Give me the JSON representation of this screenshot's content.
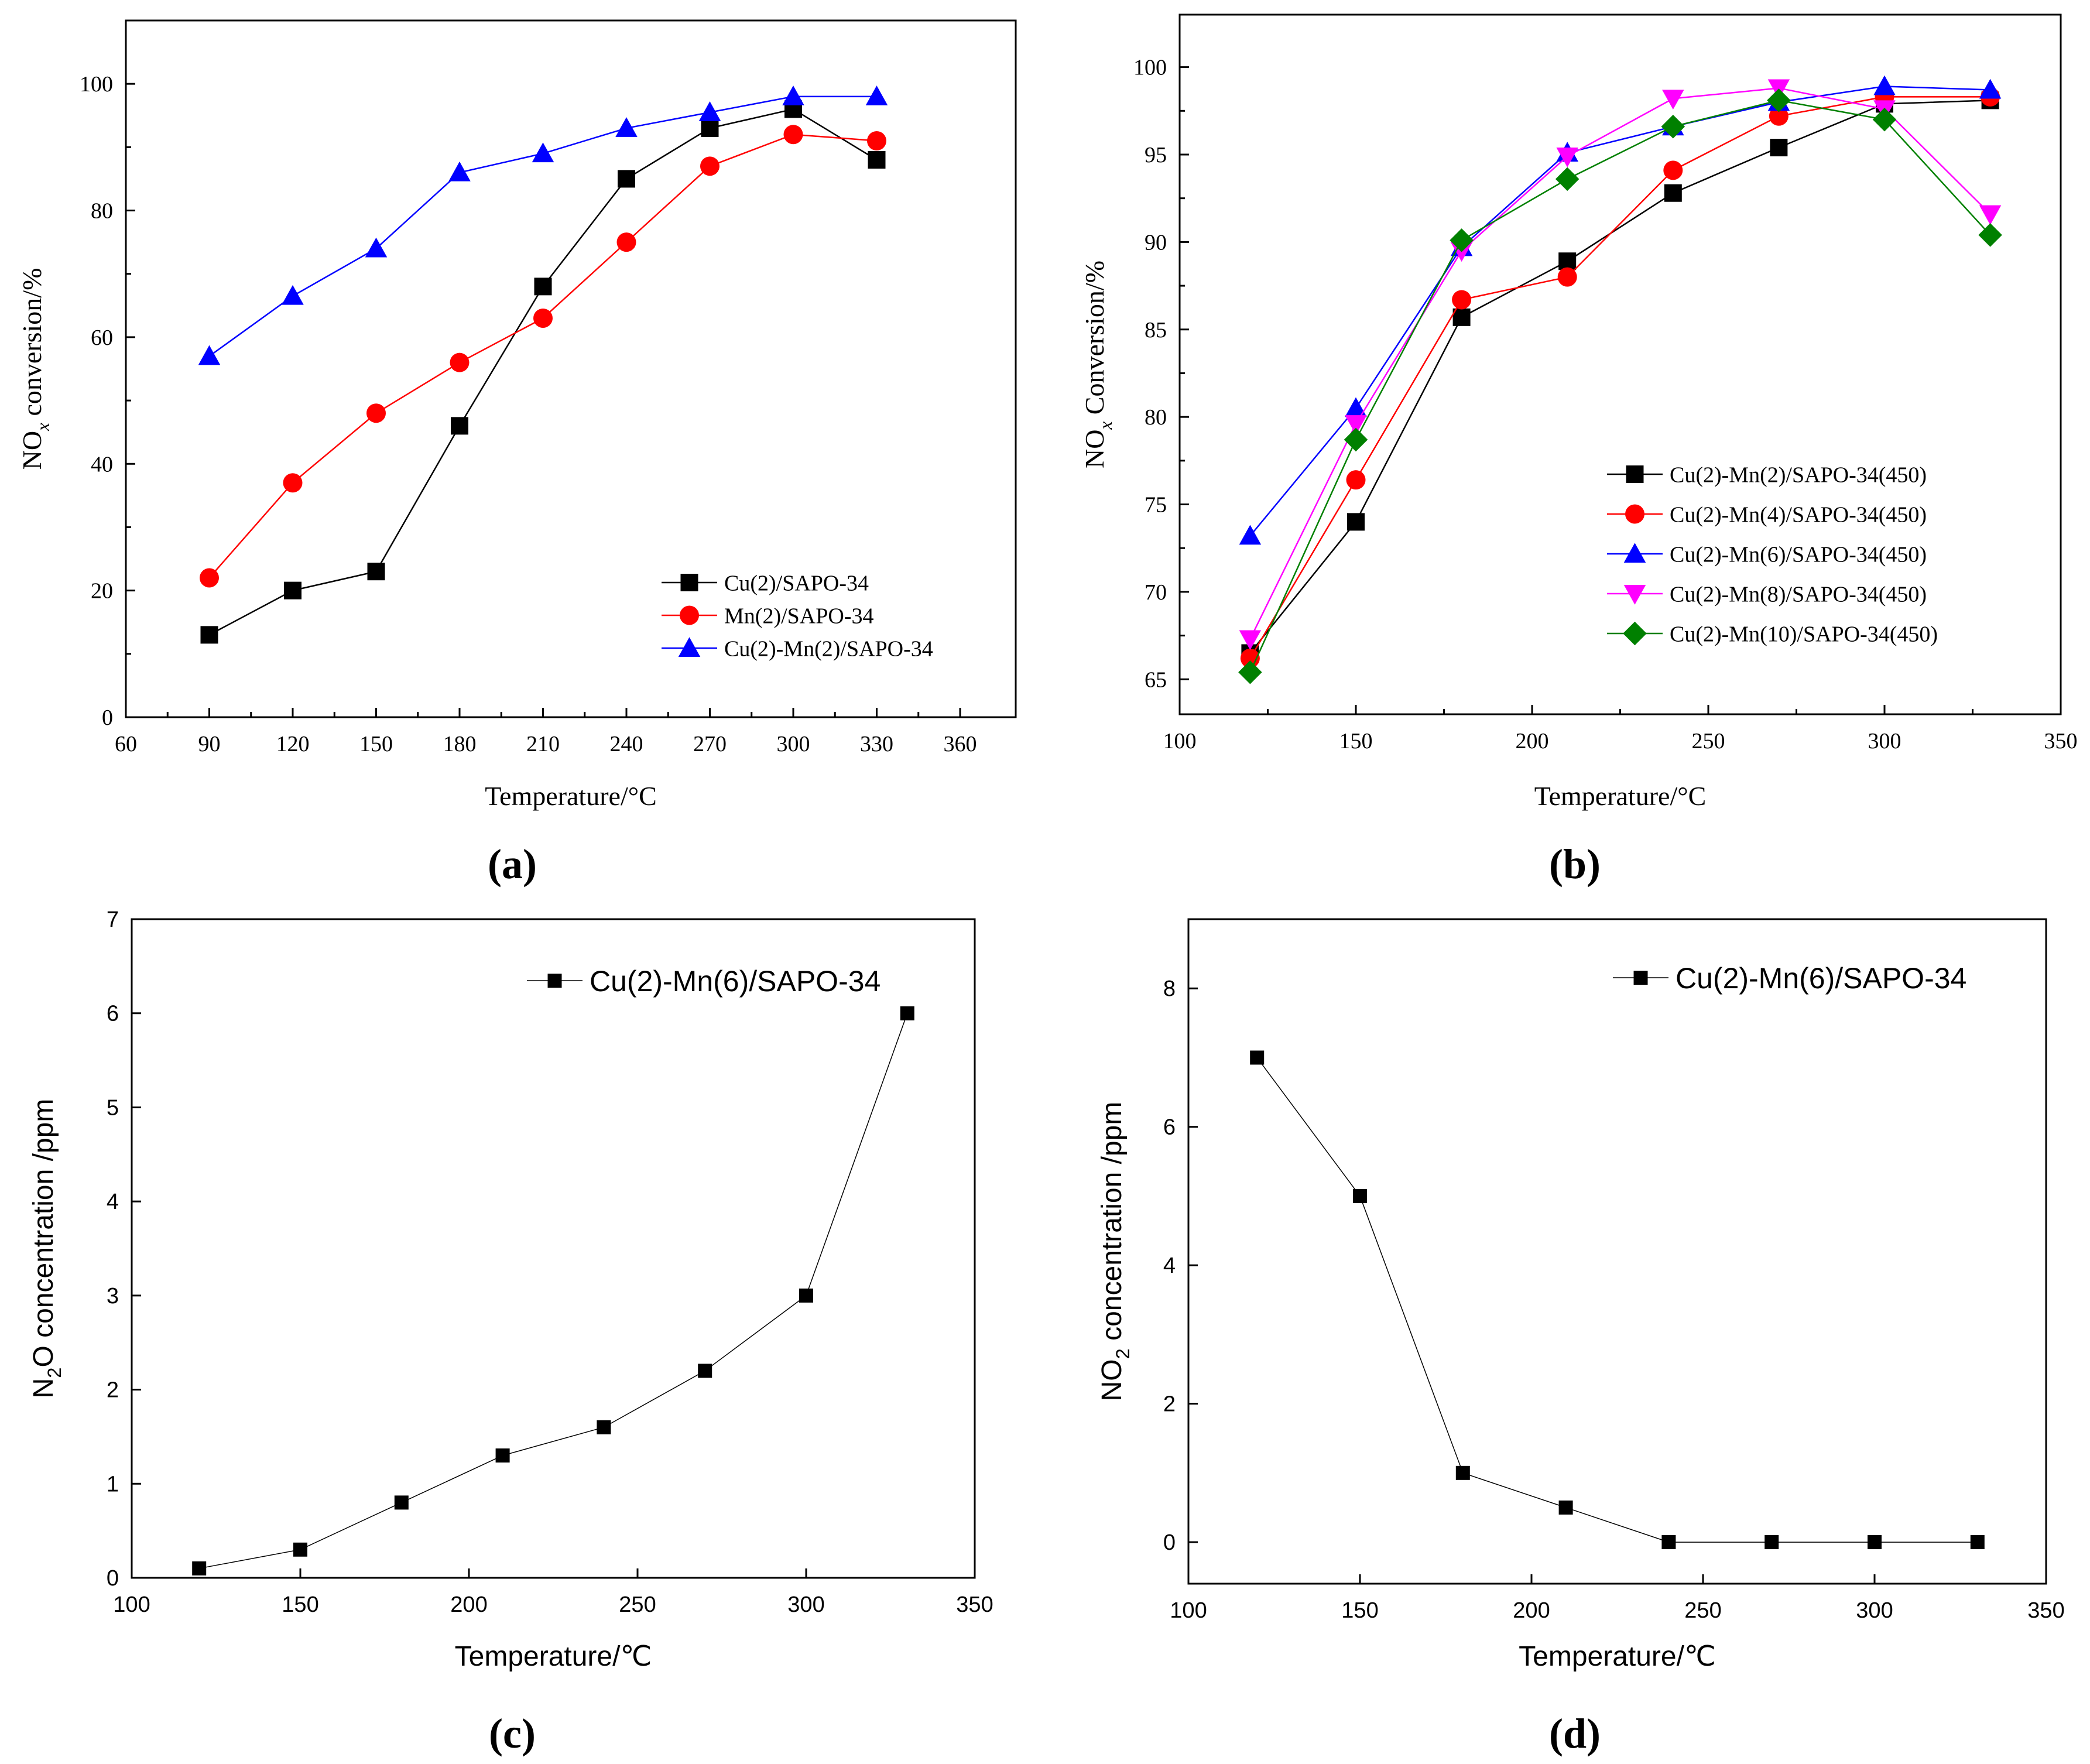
{
  "figure": {
    "panels": [
      {
        "label": "a"
      },
      {
        "label": "b"
      },
      {
        "label": "c"
      },
      {
        "label": "d"
      }
    ]
  },
  "chart_data": [
    {
      "panel": "a",
      "type": "line",
      "xlabel": "Temperature/°C",
      "ylabel_main": "NO",
      "ylabel_sub": "x",
      "ylabel_rest": " conversion/%",
      "xlim": [
        60,
        380
      ],
      "ylim": [
        0,
        110
      ],
      "xticks": [
        60,
        90,
        120,
        150,
        180,
        210,
        240,
        270,
        300,
        330,
        360
      ],
      "yticks": [
        0,
        20,
        40,
        60,
        80,
        100
      ],
      "legend": "bottom-right",
      "series": [
        {
          "name": "Cu(2)/SAPO-34",
          "color": "#000000",
          "marker": "square",
          "x": [
            90,
            120,
            150,
            180,
            210,
            240,
            270,
            300,
            330
          ],
          "y": [
            13,
            20,
            23,
            46,
            68,
            85,
            93,
            96,
            88
          ]
        },
        {
          "name": "Mn(2)/SAPO-34",
          "color": "#ff0000",
          "marker": "circle",
          "x": [
            90,
            120,
            150,
            180,
            210,
            240,
            270,
            300,
            330
          ],
          "y": [
            22,
            37,
            48,
            56,
            63,
            75,
            87,
            92,
            91
          ]
        },
        {
          "name": "Cu(2)-Mn(2)/SAPO-34",
          "color": "#0000ff",
          "marker": "triangle-up",
          "x": [
            90,
            120,
            150,
            180,
            210,
            240,
            270,
            300,
            330
          ],
          "y": [
            57,
            66.5,
            74,
            86,
            89,
            93,
            95.5,
            98,
            98
          ]
        }
      ]
    },
    {
      "panel": "b",
      "type": "line",
      "xlabel": "Temperature/°C",
      "ylabel_main": "NO",
      "ylabel_sub": "x",
      "ylabel_rest": " Conversion/%",
      "xlim": [
        100,
        350
      ],
      "ylim": [
        63,
        103
      ],
      "xticks": [
        100,
        150,
        200,
        250,
        300,
        350
      ],
      "yticks": [
        65,
        70,
        75,
        80,
        85,
        90,
        95,
        100
      ],
      "legend": "center-right",
      "series": [
        {
          "name": "Cu(2)-Mn(2)/SAPO-34(450)",
          "color": "#000000",
          "marker": "square",
          "x": [
            120,
            150,
            180,
            210,
            240,
            270,
            300,
            330
          ],
          "y": [
            66.5,
            74,
            85.7,
            88.9,
            92.8,
            95.4,
            97.9,
            98.1
          ]
        },
        {
          "name": "Cu(2)-Mn(4)/SAPO-34(450)",
          "color": "#ff0000",
          "marker": "circle",
          "x": [
            120,
            150,
            180,
            210,
            240,
            270,
            300,
            330
          ],
          "y": [
            66.2,
            76.4,
            86.7,
            88,
            94.1,
            97.2,
            98.3,
            98.3
          ]
        },
        {
          "name": "Cu(2)-Mn(6)/SAPO-34(450)",
          "color": "#0000ff",
          "marker": "triangle-up",
          "x": [
            120,
            150,
            180,
            210,
            240,
            270,
            300,
            330
          ],
          "y": [
            73.2,
            80.5,
            89.7,
            95.1,
            96.6,
            98,
            98.9,
            98.7
          ]
        },
        {
          "name": "Cu(2)-Mn(8)/SAPO-34(450)",
          "color": "#ff00ff",
          "marker": "triangle-down",
          "x": [
            120,
            150,
            180,
            210,
            240,
            270,
            300,
            330
          ],
          "y": [
            67.3,
            79.6,
            89.5,
            94.9,
            98.2,
            98.8,
            97.6,
            91.6
          ]
        },
        {
          "name": "Cu(2)-Mn(10)/SAPO-34(450)",
          "color": "#008000",
          "marker": "diamond",
          "x": [
            120,
            150,
            180,
            210,
            240,
            270,
            300,
            330
          ],
          "y": [
            65.4,
            78.7,
            90.1,
            93.6,
            96.6,
            98.1,
            97,
            90.4
          ]
        }
      ]
    },
    {
      "panel": "c",
      "type": "line",
      "xlabel": "Temperature/℃",
      "ylabel_main": "N",
      "ylabel_sub": "2",
      "ylabel_rest": "O concentration /ppm",
      "xlim": [
        100,
        350
      ],
      "ylim": [
        0,
        7
      ],
      "xticks": [
        100,
        150,
        200,
        250,
        300,
        350
      ],
      "yticks": [
        0,
        1,
        2,
        3,
        4,
        5,
        6,
        7
      ],
      "legend": "top-right",
      "series": [
        {
          "name": "Cu(2)-Mn(6)/SAPO-34",
          "color": "#000000",
          "marker": "square",
          "x": [
            120,
            150,
            180,
            210,
            240,
            270,
            300,
            330
          ],
          "y": [
            0.1,
            0.3,
            0.8,
            1.3,
            1.6,
            2.2,
            3,
            6
          ]
        }
      ]
    },
    {
      "panel": "d",
      "type": "line",
      "xlabel": "Temperature/℃",
      "ylabel_main": "NO",
      "ylabel_sub": "2",
      "ylabel_rest": " concentration /ppm",
      "xlim": [
        100,
        350
      ],
      "ylim": [
        -0.6,
        9
      ],
      "xticks": [
        100,
        150,
        200,
        250,
        300,
        350
      ],
      "yticks": [
        0,
        2,
        4,
        6,
        8
      ],
      "legend": "top-right",
      "series": [
        {
          "name": "Cu(2)-Mn(6)/SAPO-34",
          "color": "#000000",
          "marker": "square",
          "x": [
            120,
            150,
            180,
            210,
            240,
            270,
            300,
            330
          ],
          "y": [
            7,
            5,
            1,
            0.5,
            0,
            0,
            0,
            0
          ]
        }
      ]
    }
  ]
}
